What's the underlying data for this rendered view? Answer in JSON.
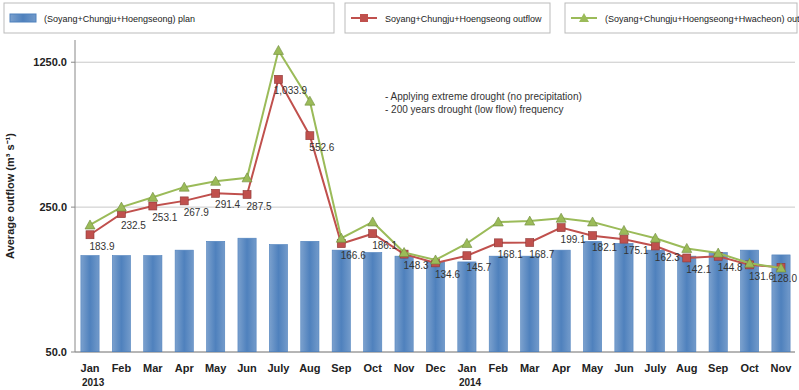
{
  "chart_data": {
    "type": "bar",
    "y_label": "Average outflow (m³ s⁻¹)",
    "annotations": [
      "- Applying extreme drought (no precipitation)",
      "- 200 years drought (low flow) frequency"
    ],
    "categories": [
      "Jan",
      "Feb",
      "Mar",
      "Apr",
      "May",
      "Jun",
      "July",
      "Aug",
      "Sep",
      "Oct",
      "Nov",
      "Dec",
      "Jan",
      "Feb",
      "Mar",
      "Apr",
      "May",
      "Jun",
      "July",
      "Aug",
      "Sep",
      "Oct",
      "Nov"
    ],
    "x_groups": [
      {
        "label": "2013",
        "start": 0
      },
      {
        "label": "2014",
        "start": 12
      }
    ],
    "series": [
      {
        "name": "(Soyang+Chungju+Hoengseong) plan",
        "type": "bar",
        "color": "#4f81bd",
        "values": [
          146,
          146,
          146,
          155,
          171,
          177,
          165,
          171,
          155,
          151,
          145,
          136,
          136,
          145,
          145,
          155,
          171,
          167,
          155,
          145,
          151,
          155,
          147
        ]
      },
      {
        "name": "Soyang+Chungju+Hoengseong outflow",
        "type": "line",
        "color": "#c0504d",
        "marker": "square",
        "data_labels": true,
        "values": [
          183.9,
          232.5,
          253.1,
          267.9,
          291.4,
          287.5,
          1033.9,
          552.6,
          166.6,
          186.1,
          148.3,
          134.6,
          145.7,
          168.1,
          168.7,
          199.1,
          182.1,
          175.1,
          162.3,
          142.1,
          144.8,
          131.6,
          128.0
        ],
        "value_labels": [
          "183.9",
          "232.5",
          "253.1",
          "267.9",
          "291.4",
          "287.5",
          "1,033.9",
          "552.6",
          "166.6",
          "186.1",
          "148.3",
          "134.6",
          "145.7",
          "168.1",
          "168.7",
          "199.1",
          "182.1",
          "175.1",
          "162.3",
          "142.1",
          "144.8",
          "131.6",
          "128.0"
        ]
      },
      {
        "name": "(Soyang+Chungju+Hoengseong+Hwacheon)  outflow",
        "type": "line",
        "color": "#9bbb59",
        "marker": "triangle",
        "values": [
          205,
          250,
          279,
          312,
          333,
          346,
          1425,
          811,
          177,
          212,
          151,
          139,
          167,
          212,
          214,
          221,
          212,
          193,
          177,
          158,
          150,
          134,
          127
        ]
      }
    ],
    "log": "y",
    "ylim": [
      50,
      1600
    ],
    "yticks": [
      {
        "value": 50,
        "label": "50.0"
      },
      {
        "value": 250,
        "label": "250.0"
      },
      {
        "value": 1250,
        "label": "1250.0"
      }
    ],
    "grid": true,
    "legend": "top"
  }
}
